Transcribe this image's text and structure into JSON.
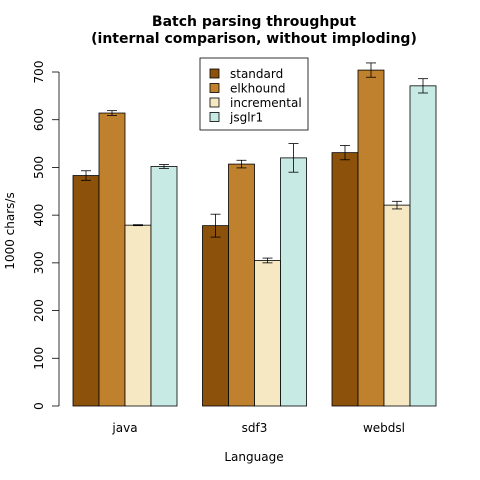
{
  "chart_data": {
    "type": "bar",
    "title_lines": [
      "Batch parsing throughput",
      "(internal comparison, without imploding)"
    ],
    "xlabel": "Language",
    "ylabel": "1000 chars/s",
    "ylim": [
      0,
      700
    ],
    "yticks": [
      "0",
      "100",
      "200",
      "300",
      "400",
      "500",
      "600",
      "700"
    ],
    "categories": [
      "java",
      "sdf3",
      "webdsl"
    ],
    "series": [
      {
        "name": "standard",
        "color": "#8c510a",
        "values": [
          483,
          378,
          531
        ],
        "errors": [
          10,
          24,
          15
        ]
      },
      {
        "name": "elkhound",
        "color": "#bf812d",
        "values": [
          614,
          507,
          704
        ],
        "errors": [
          5,
          8,
          15
        ]
      },
      {
        "name": "incremental",
        "color": "#f6e8c3",
        "values": [
          379,
          305,
          421
        ],
        "errors": [
          1,
          5,
          8
        ]
      },
      {
        "name": "jsglr1",
        "color": "#c7eae5",
        "values": [
          502,
          520,
          671
        ],
        "errors": [
          4,
          30,
          15
        ]
      }
    ],
    "legend_position": "top-center",
    "grid": false
  }
}
